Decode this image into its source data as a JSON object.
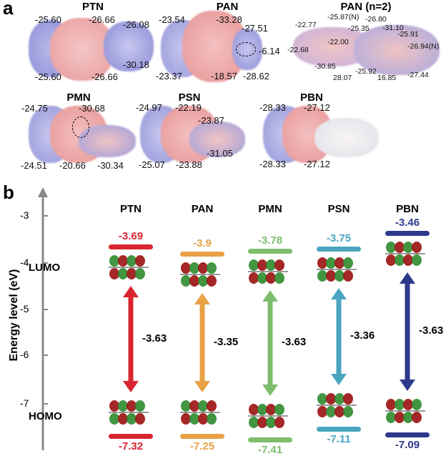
{
  "panel_a": {
    "label": "a",
    "molecules": [
      {
        "name": "PTN",
        "values": [
          "-25.60",
          "-26.66",
          "-26.08",
          "-30.18",
          "-25.60",
          "-26.66"
        ]
      },
      {
        "name": "PAN",
        "values": [
          "-23.54",
          "-33.28",
          "-27.51",
          "-6.14",
          "-23.37",
          "-18.57",
          "-28.62"
        ]
      },
      {
        "name": "PAN (n=2)",
        "values": [
          "-22.77",
          "-22.00",
          "-25.87(N)",
          "-25.35",
          "-26.80",
          "-31.10",
          "-25.91",
          "-26.94(N)",
          "-22.68",
          "-30.85",
          "28.07",
          "-25.92",
          "16.85",
          "-27.44"
        ]
      },
      {
        "name": "PMN",
        "values": [
          "-24.75",
          "-30.68",
          "-24.51",
          "-20.66",
          "-30.34"
        ]
      },
      {
        "name": "PSN",
        "values": [
          "-24.97",
          "-22.19",
          "-23.87",
          "-31.05",
          "-25.07",
          "-23.88"
        ]
      },
      {
        "name": "PBN",
        "values": [
          "-28.33",
          "-27.12",
          "-28.33",
          "-27.12"
        ]
      }
    ]
  },
  "chart_data": {
    "type": "energy-level-diagram",
    "panel_label": "b",
    "ylabel": "Energy level (eV)",
    "yticks": [
      "-3",
      "-4",
      "-5",
      "-6",
      "-7"
    ],
    "ylim": [
      -7.6,
      -2.5
    ],
    "row_labels": {
      "lumo": "LUMO",
      "homo": "HOMO"
    },
    "categories": [
      "PTN",
      "PAN",
      "PMN",
      "PSN",
      "PBN"
    ],
    "lumo": [
      "-3.69",
      "-3.9",
      "-3.78",
      "-3.75",
      "-3.46"
    ],
    "homo": [
      "-7.32",
      "-7.25",
      "-7.41",
      "-7.11",
      "-7.09"
    ],
    "gap": [
      "-3.63",
      "-3.35",
      "-3.63",
      "-3.36",
      "-3.63"
    ],
    "colors": [
      "#d9252f",
      "#e8a145",
      "#7dbd6d",
      "#4aa5c0",
      "#2d3a8c"
    ]
  }
}
